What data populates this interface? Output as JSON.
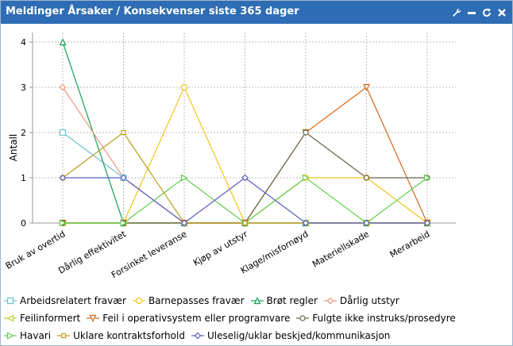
{
  "window": {
    "title": "Meldinger Årsaker / Konsekvenser siste 365 dager",
    "tools": [
      {
        "name": "wrench-icon",
        "glyph": "🔧"
      },
      {
        "name": "minimize-icon",
        "glyph": "▬"
      },
      {
        "name": "refresh-icon",
        "glyph": "↻"
      },
      {
        "name": "close-icon",
        "glyph": "✖"
      }
    ]
  },
  "chart_data": {
    "type": "line",
    "title": "",
    "xlabel": "",
    "ylabel": "Antall",
    "ylim": [
      0,
      4
    ],
    "yticks": [
      0,
      1,
      2,
      3,
      4
    ],
    "grid": true,
    "legend_position": "bottom",
    "categories": [
      "Bruk av overtid",
      "Dårlig effektivitet",
      "Forsinket leveranse",
      "Kjøp av utstyr",
      "Klage/misfornøyd",
      "Materiellskade",
      "Merarbeid"
    ],
    "series": [
      {
        "name": "Arbeidsrelatert fravær",
        "color": "#6ec3d0",
        "marker": "square",
        "values": [
          2,
          1,
          0,
          0,
          0,
          0,
          0
        ]
      },
      {
        "name": "Barnepasses fravær",
        "color": "#f3c31c",
        "marker": "circle",
        "values": [
          0,
          0,
          3,
          0,
          1,
          1,
          0
        ]
      },
      {
        "name": "Brøt regler",
        "color": "#13a24e",
        "marker": "triangle-up",
        "values": [
          4,
          0,
          0,
          0,
          0,
          0,
          0
        ]
      },
      {
        "name": "Dårlig utstyr",
        "color": "#f2957a",
        "marker": "diamond",
        "values": [
          3,
          1,
          0,
          0,
          0,
          0,
          0
        ]
      },
      {
        "name": "Feilinformert",
        "color": "#b8d030",
        "marker": "triangle-left",
        "values": [
          0,
          0,
          0,
          0,
          0,
          0,
          0
        ]
      },
      {
        "name": "Feil i operativsystem eller programvare",
        "color": "#d8661a",
        "marker": "triangle-down",
        "values": [
          0,
          0,
          0,
          0,
          2,
          3,
          0
        ]
      },
      {
        "name": "Fulgte ikke instruks/prosedyre",
        "color": "#62684a",
        "marker": "hexagon",
        "values": [
          0,
          0,
          0,
          0,
          2,
          1,
          1
        ]
      },
      {
        "name": "Havari",
        "color": "#5fce4c",
        "marker": "triangle-right",
        "values": [
          0,
          0,
          1,
          0,
          1,
          0,
          1
        ]
      },
      {
        "name": "Uklare kontraktsforhold",
        "color": "#c09a1e",
        "marker": "square-small",
        "values": [
          1,
          2,
          0,
          0,
          0,
          0,
          0
        ]
      },
      {
        "name": "Uleselig/uklar beskjed/kommunikasjon",
        "color": "#5a5cc2",
        "marker": "diamond",
        "values": [
          1,
          1,
          0,
          1,
          0,
          0,
          0
        ]
      }
    ]
  }
}
